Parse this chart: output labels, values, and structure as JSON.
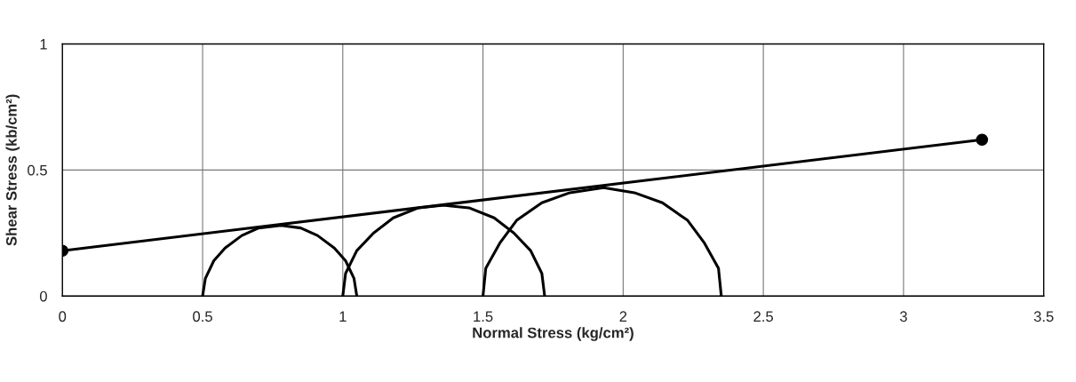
{
  "chart_data": {
    "type": "line",
    "xlabel": "Normal Stress (kg/cm²)",
    "ylabel": "Shear Stress (kb/cm²)",
    "xlim": [
      0,
      3.5
    ],
    "xticks": [
      0,
      0.5,
      1,
      1.5,
      2,
      2.5,
      3,
      3.5
    ],
    "ylim": [
      0,
      1
    ],
    "yticks": [
      0,
      0.5,
      1
    ],
    "grid": true,
    "line_style": "solid",
    "series": [
      {
        "color": "#000000",
        "marker": "circle",
        "x": [
          0,
          3.28
        ],
        "values": [
          0.18,
          0.62
        ]
      },
      {
        "color": "#000000",
        "marker": "none",
        "x": [
          0.5,
          0.51,
          0.54,
          0.58,
          0.64,
          0.7,
          0.78,
          0.85,
          0.91,
          0.97,
          1.01,
          1.04,
          1.05
        ],
        "values": [
          0,
          0.07,
          0.14,
          0.19,
          0.24,
          0.27,
          0.28,
          0.27,
          0.24,
          0.19,
          0.14,
          0.07,
          0
        ]
      },
      {
        "color": "#000000",
        "marker": "none",
        "x": [
          1.0,
          1.01,
          1.05,
          1.11,
          1.18,
          1.27,
          1.36,
          1.45,
          1.54,
          1.61,
          1.67,
          1.71,
          1.72
        ],
        "values": [
          0,
          0.09,
          0.18,
          0.25,
          0.31,
          0.35,
          0.36,
          0.35,
          0.31,
          0.25,
          0.18,
          0.09,
          0
        ]
      },
      {
        "color": "#000000",
        "marker": "none",
        "x": [
          1.5,
          1.51,
          1.56,
          1.62,
          1.71,
          1.81,
          1.93,
          2.04,
          2.14,
          2.23,
          2.29,
          2.34,
          2.35
        ],
        "values": [
          0,
          0.11,
          0.21,
          0.3,
          0.37,
          0.41,
          0.43,
          0.41,
          0.37,
          0.3,
          0.21,
          0.11,
          0
        ]
      }
    ]
  }
}
